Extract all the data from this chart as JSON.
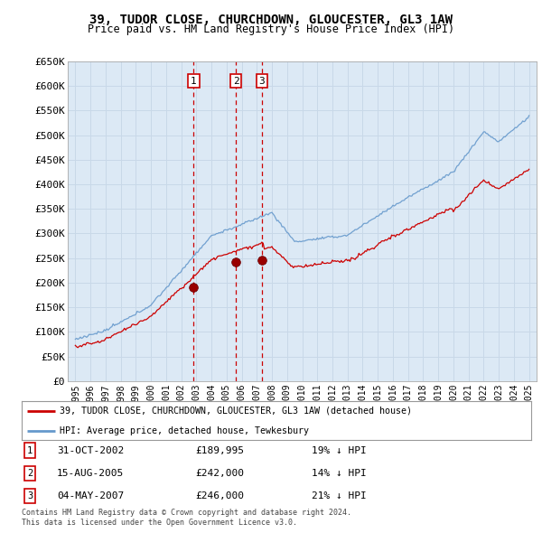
{
  "title": "39, TUDOR CLOSE, CHURCHDOWN, GLOUCESTER, GL3 1AW",
  "subtitle": "Price paid vs. HM Land Registry's House Price Index (HPI)",
  "legend_red": "39, TUDOR CLOSE, CHURCHDOWN, GLOUCESTER, GL3 1AW (detached house)",
  "legend_blue": "HPI: Average price, detached house, Tewkesbury",
  "footer1": "Contains HM Land Registry data © Crown copyright and database right 2024.",
  "footer2": "This data is licensed under the Open Government Licence v3.0.",
  "sales": [
    {
      "label": "1",
      "date": "31-OCT-2002",
      "price": 189995,
      "price_str": "£189,995",
      "hpi_pct": "19% ↓ HPI",
      "x": 2002.83
    },
    {
      "label": "2",
      "date": "15-AUG-2005",
      "price": 242000,
      "price_str": "£242,000",
      "hpi_pct": "14% ↓ HPI",
      "x": 2005.62
    },
    {
      "label": "3",
      "date": "04-MAY-2007",
      "price": 246000,
      "price_str": "£246,000",
      "hpi_pct": "21% ↓ HPI",
      "x": 2007.34
    }
  ],
  "ylim": [
    0,
    650000
  ],
  "yticks": [
    0,
    50000,
    100000,
    150000,
    200000,
    250000,
    300000,
    350000,
    400000,
    450000,
    500000,
    550000,
    600000,
    650000
  ],
  "xlim": [
    1994.5,
    2025.5
  ],
  "plot_bg": "#dce9f5",
  "grid_color": "#b8cfe0",
  "red_color": "#cc0000",
  "blue_color": "#6699cc",
  "marker_fill": "#990000"
}
